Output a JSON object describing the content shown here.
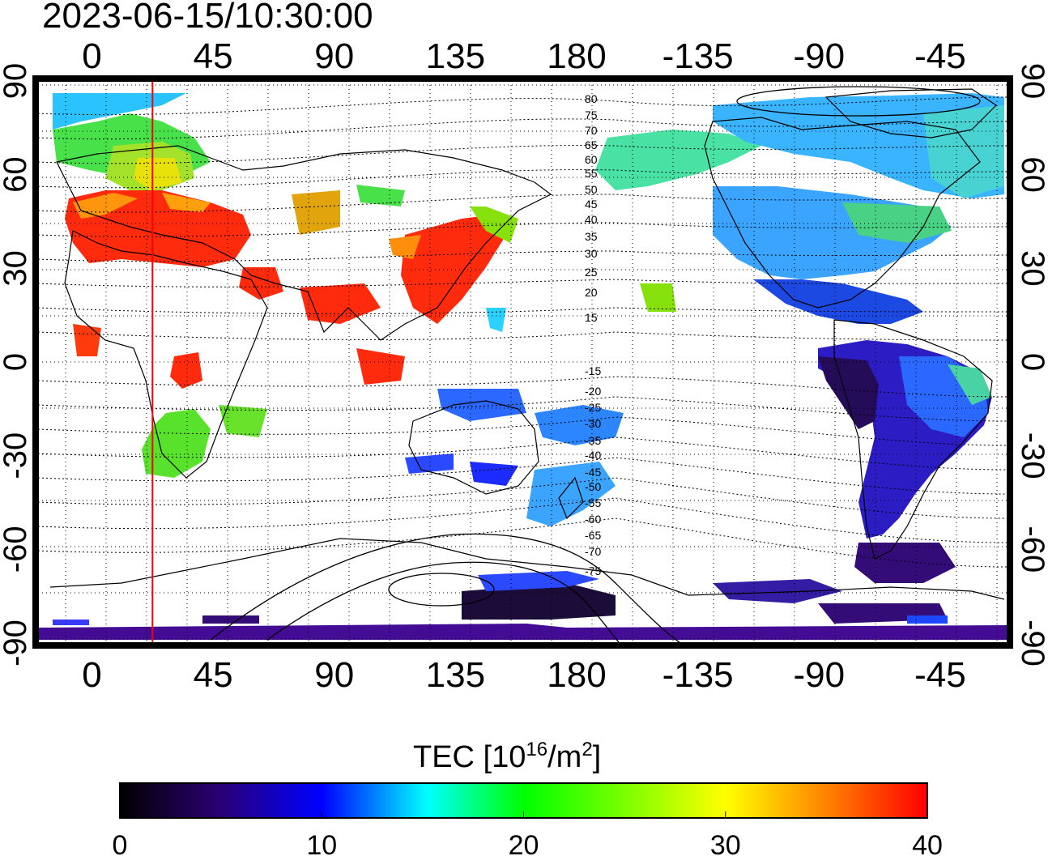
{
  "title": "2023-06-15/10:30:00",
  "map": {
    "lon_ticks": [
      "0",
      "45",
      "90",
      "135",
      "180",
      "-135",
      "-90",
      "-45"
    ],
    "lat_ticks": [
      "90",
      "60",
      "30",
      "0",
      "-30",
      "-60",
      "-90"
    ],
    "lon_range": [
      -20,
      340
    ],
    "lat_range": [
      -90,
      90
    ],
    "terminator_longitude": 22.5,
    "contour_labels_north": [
      "80",
      "75",
      "70",
      "65",
      "60",
      "55",
      "50",
      "45",
      "40",
      "35",
      "30",
      "25",
      "20",
      "15"
    ],
    "contour_labels_south": [
      "-15",
      "-20",
      "-25",
      "-30",
      "-35",
      "-40",
      "-45",
      "-50",
      "-55",
      "-60",
      "-65",
      "-70",
      "-75"
    ],
    "grid": "dotted every 15 degrees"
  },
  "colorbar": {
    "title_prefix": "TEC  [10",
    "title_sup1": "16",
    "title_mid": "/m",
    "title_sup2": "2",
    "title_suffix": "]",
    "min": 0,
    "max": 40,
    "tick_labels": [
      "0",
      "10",
      "20",
      "30",
      "40"
    ],
    "colors": [
      "#000000",
      "#2a0070",
      "#0000ff",
      "#00ffff",
      "#00ff00",
      "#ffff00",
      "#ff8800",
      "#ff0000"
    ]
  },
  "colors": {
    "terminator": "#ff0000",
    "axis": "#000000"
  }
}
